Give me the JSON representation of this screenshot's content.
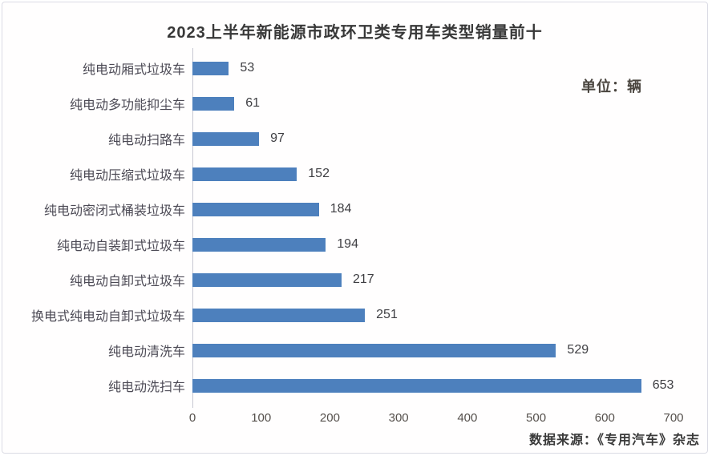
{
  "chart": {
    "title": "2023上半年新能源市政环卫类专用车类型销量前十",
    "unit_label": "单位：辆",
    "source": "数据来源：《专用汽车》杂志"
  },
  "chart_data": {
    "type": "bar",
    "orientation": "horizontal",
    "title": "2023上半年新能源市政环卫类专用车类型销量前十",
    "categories": [
      "纯电动厢式垃圾车",
      "纯电动多功能抑尘车",
      "纯电动扫路车",
      "纯电动压缩式垃圾车",
      "纯电动密闭式桶装垃圾车",
      "纯电动自装卸式垃圾车",
      "纯电动自卸式垃圾车",
      "换电式纯电动自卸式垃圾车",
      "纯电动清洗车",
      "纯电动洗扫车"
    ],
    "values": [
      53,
      61,
      97,
      152,
      184,
      194,
      217,
      251,
      529,
      653
    ],
    "xlabel": "",
    "ylabel": "",
    "xlim": [
      0,
      700
    ],
    "x_ticks": [
      0,
      100,
      200,
      300,
      400,
      500,
      600,
      700
    ],
    "unit": "辆",
    "bar_color": "#4d80bd",
    "grid": false,
    "data_labels": true,
    "legend": "none"
  }
}
